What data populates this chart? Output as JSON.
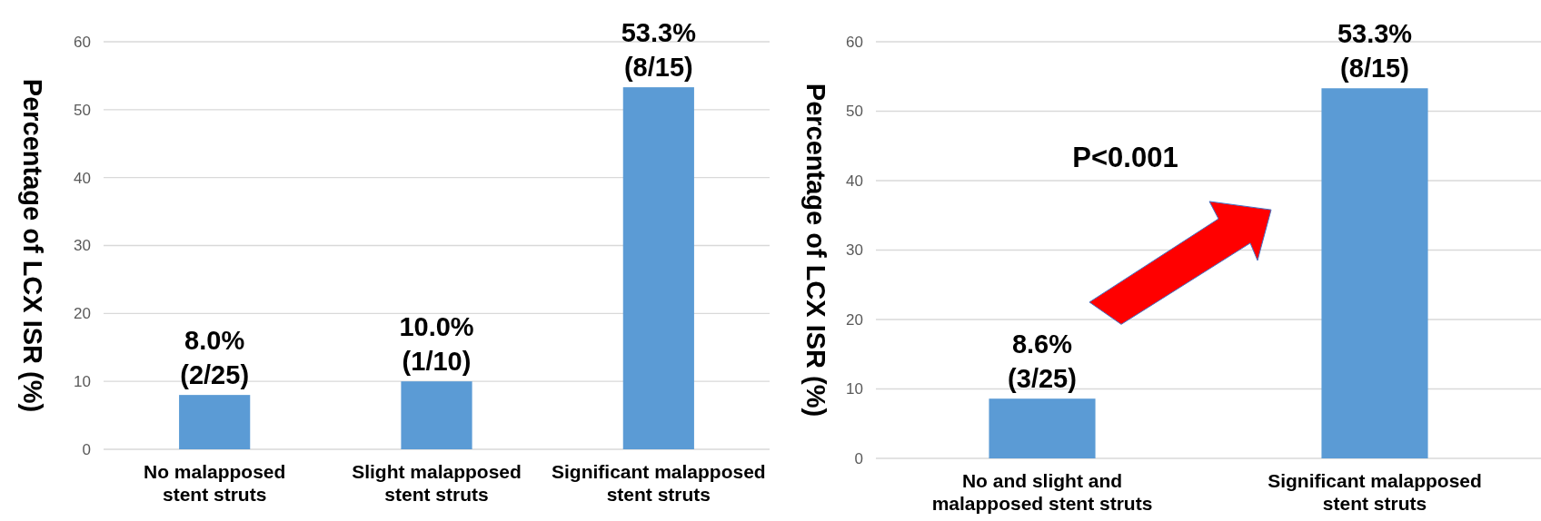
{
  "chart_data": [
    {
      "type": "bar",
      "ylabel": "Percentage of LCX ISR (%)",
      "categories": [
        "No malapposed\nstent struts",
        "Slight malapposed\nstent struts",
        "Significant malapposed\nstent struts"
      ],
      "values": [
        8.0,
        10.0,
        53.3
      ],
      "color": "#5b9bd5",
      "value_labels": [
        "8.0%\n(2/25)",
        "10.0%\n(1/10)",
        "53.3%\n(8/15)"
      ],
      "ylim": [
        0,
        60
      ],
      "yticks": [
        0,
        10,
        20,
        30,
        40,
        50,
        60
      ],
      "grid": "y"
    },
    {
      "type": "bar",
      "ylabel": "Percentage of LCX ISR (%)",
      "categories": [
        "No and slight and\nmalapposed stent struts",
        "Significant malapposed\nstent struts"
      ],
      "values": [
        8.6,
        53.3
      ],
      "color": "#5b9bd5",
      "value_labels": [
        "8.6%\n(3/25)",
        "53.3%\n(8/15)"
      ],
      "ylim": [
        0,
        60
      ],
      "yticks": [
        0,
        10,
        20,
        30,
        40,
        50,
        60
      ],
      "grid": "y",
      "annotations": [
        "P<0.001"
      ]
    }
  ]
}
